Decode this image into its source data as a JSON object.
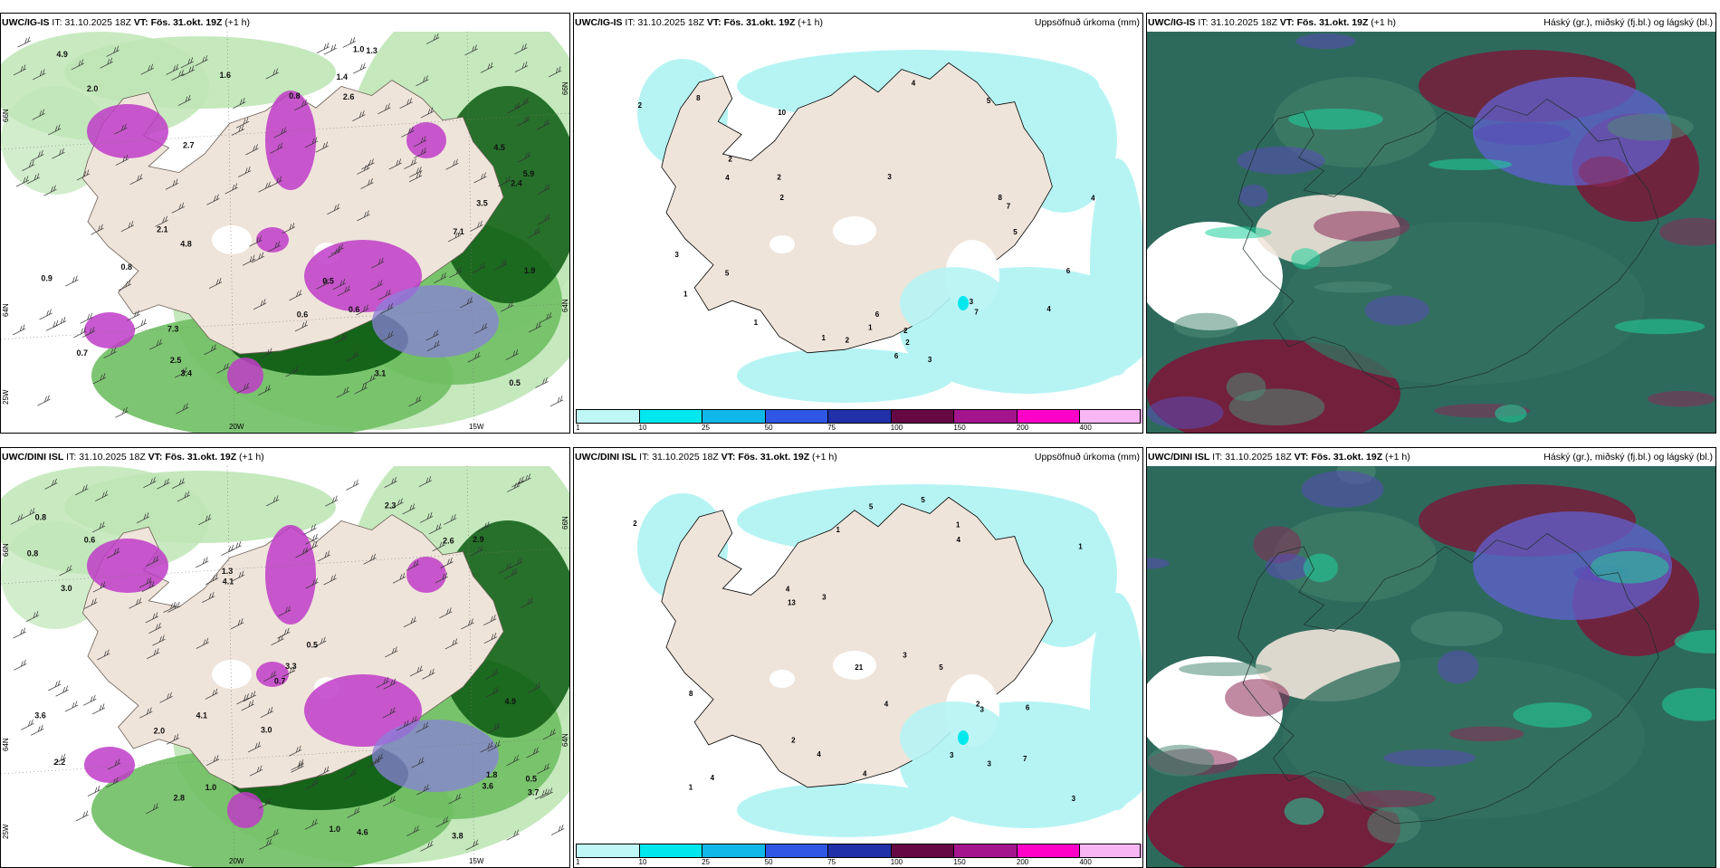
{
  "colorbar": {
    "ticks": [
      "1",
      "10",
      "25",
      "50",
      "75",
      "100",
      "150",
      "200",
      "400"
    ],
    "colors": [
      "#bff7f7",
      "#00e8ee",
      "#10b8ea",
      "#2f57e6",
      "#2030a8",
      "#660844",
      "#a4148c",
      "#ff00c8",
      "#f8b6f4"
    ]
  },
  "palette": {
    "land": "#efe4da",
    "green_light": "#bfe6b6",
    "green_mid": "#6fbf63",
    "green_dark": "#0a5a12",
    "magenta": "#c03cc8",
    "purple": "#8a80d8",
    "sea_cyan": "#b6f4f4",
    "teal": "#2e6a5c",
    "maroon": "#7a1838",
    "cloud_blue": "#6060d0"
  },
  "rows": [
    {
      "panels": [
        {
          "model": "UWC/IG-IS",
          "it_label": "IT:",
          "it_value": "31.10.2025 18Z",
          "vt_label": "VT:",
          "vt_value": "Fös. 31.okt. 19Z",
          "lead": "(+1 h)",
          "title_right": "",
          "axis": {
            "bottom_left": "20W",
            "bottom_right": "15W",
            "left_top": "66N",
            "left_mid": "64N",
            "left_bottom": "25W",
            "right_top": "66N",
            "right_mid": "64N"
          },
          "labels": [
            "0.7",
            "0.6",
            "0.8",
            "1.0",
            "4.5",
            "3.1",
            "0.9",
            "2.4",
            "2.1",
            "1.3",
            "5.9",
            "7.3",
            "7.1",
            "4.8",
            "4.9",
            "3.5",
            "2.7",
            "1.9",
            "2.0",
            "3.4",
            "2.5",
            "0.5",
            "0.6",
            "1.6",
            "2.6",
            "1.4",
            "0.5",
            "0.8"
          ]
        },
        {
          "model": "UWC/IG-IS",
          "it_label": "IT:",
          "it_value": "31.10.2025 18Z",
          "vt_label": "VT:",
          "vt_value": "Fös. 31.okt. 19Z",
          "lead": "(+1 h)",
          "title_right": "Uppsöfnuð úrkoma (mm)",
          "labels": [
            "1",
            "6",
            "3",
            "2",
            "4",
            "1",
            "1",
            "3",
            "8",
            "2",
            "5",
            "4",
            "2",
            "3",
            "5",
            "2",
            "3",
            "7",
            "6",
            "7",
            "8",
            "5",
            "4",
            "2",
            "2",
            "1",
            "4",
            "6",
            "10",
            "2"
          ]
        },
        {
          "model": "UWC/IG-IS",
          "it_label": "IT:",
          "it_value": "31.10.2025 18Z",
          "vt_label": "VT:",
          "vt_value": "Fös. 31.okt. 19Z",
          "lead": "(+1 h)",
          "title_right": "Háský (gr.), miðský (fj.bl.) og lágský (bl.)"
        }
      ]
    },
    {
      "panels": [
        {
          "model": "UWC/DINI ISL",
          "it_label": "IT:",
          "it_value": "31.10.2025 18Z",
          "vt_label": "VT:",
          "vt_value": "Fös. 31.okt. 19Z",
          "lead": "(+1 h)",
          "title_right": "",
          "axis": {
            "bottom_left": "20W",
            "bottom_right": "15W",
            "left_top": "66N",
            "left_mid": "64N",
            "left_bottom": "25W",
            "right_top": "66N",
            "right_mid": "64N"
          },
          "labels": [
            "0.5",
            "1.0",
            "0.6",
            "0.8",
            "0.7",
            "2.2",
            "2.6",
            "1.3",
            "1.8",
            "2.0",
            "4.1",
            "4.9",
            "2.3",
            "3.8",
            "3.3",
            "3.0",
            "3.6",
            "3.7",
            "3.6",
            "4.1",
            "4.6",
            "2.8",
            "3.0",
            "2.9",
            "0.8",
            "1.0",
            "0.5"
          ]
        },
        {
          "model": "UWC/DINI ISL",
          "it_label": "IT:",
          "it_value": "31.10.2025 18Z",
          "vt_label": "VT:",
          "vt_value": "Fös. 31.okt. 19Z",
          "lead": "(+1 h)",
          "title_right": "Uppsöfnuð úrkoma (mm)",
          "labels": [
            "1",
            "6",
            "3",
            "4",
            "1",
            "5",
            "7",
            "1",
            "3",
            "2",
            "3",
            "13",
            "4",
            "5",
            "3",
            "4",
            "2",
            "8",
            "21",
            "1",
            "2",
            "4",
            "4",
            "5",
            "3",
            "4",
            "3"
          ]
        },
        {
          "model": "UWC/DINI ISL",
          "it_label": "IT:",
          "it_value": "31.10.2025 18Z",
          "vt_label": "VT:",
          "vt_value": "Fös. 31.okt. 19Z",
          "lead": "(+1 h)",
          "title_right": "Háský (gr.), miðský (fj.bl.) og lágský (bl.)"
        }
      ]
    }
  ]
}
